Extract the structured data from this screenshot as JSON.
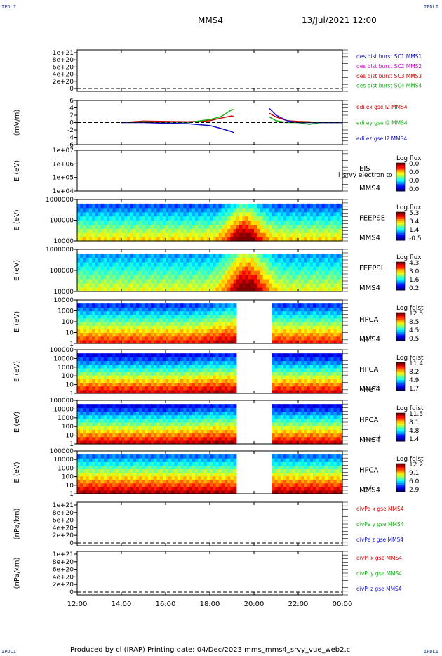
{
  "corner_label": "IPDLI",
  "header": {
    "title": "MMS4",
    "datetime": "13/Jul/2021 12:00"
  },
  "footer": {
    "text": "Produced by cl (IRAP)   Printing date: 04/Dec/2023   mms_mms4_srvy_vue_web2.cl"
  },
  "time_axis": {
    "ticks": [
      "12:00",
      "14:00",
      "16:00",
      "18:00",
      "20:00",
      "22:00",
      "00:00"
    ],
    "start_hour": 12,
    "span_hours": 12
  },
  "chart_data": [
    {
      "type": "line",
      "id": "dist",
      "ylabel": "",
      "yticks": [
        "1e+21",
        "8e+20",
        "6e+20",
        "4e+20",
        "2e+20",
        "0"
      ],
      "legend": [
        {
          "text": "des dist burst SC1 MMS1",
          "color": "#1010c8"
        },
        {
          "text": "des dist burst SC2 MMS2",
          "color": "#d400d4"
        },
        {
          "text": "des dist burst SC3 MMS3",
          "color": "#d40000"
        },
        {
          "text": "des dist burst SC4 MMS4",
          "color": "#10b010"
        }
      ],
      "series": []
    },
    {
      "type": "line",
      "id": "edi",
      "ylabel": "(mV/m)",
      "yticks": [
        "6",
        "4",
        "2",
        "0",
        "-2",
        "-4",
        "-6"
      ],
      "ylim": [
        -6,
        6
      ],
      "legend": [
        {
          "text": "edi ex gse l2 MMS4",
          "color": "#d40000"
        },
        {
          "text": "edi ey gse l2 MMS4",
          "color": "#10b010"
        },
        {
          "text": "edi ez gse l2 MMS4",
          "color": "#1010c8"
        }
      ],
      "data_ranges_hours": [
        [
          14.0,
          19.1
        ],
        [
          20.7,
          24.0
        ]
      ],
      "series": [
        {
          "name": "edi ex gse l2 MMS4",
          "x": [
            14,
            15,
            16,
            17,
            18,
            18.5,
            19,
            19.1,
            20.7,
            21,
            21.5,
            22,
            22.5,
            23,
            24
          ],
          "y": [
            0,
            0.4,
            0.3,
            0.2,
            0.5,
            1.2,
            1.8,
            1.5,
            2.5,
            1.5,
            0.5,
            0.3,
            0.2,
            0,
            0
          ]
        },
        {
          "name": "edi ey gse l2 MMS4",
          "x": [
            14,
            15,
            16,
            17,
            18,
            18.5,
            19,
            19.1,
            20.7,
            21,
            21.5,
            22,
            22.5,
            23,
            24
          ],
          "y": [
            0,
            0.2,
            0.1,
            0,
            0.8,
            1.6,
            3.5,
            3.5,
            1.5,
            0.5,
            0,
            0,
            -0.5,
            0,
            0
          ]
        },
        {
          "name": "edi ez gse l2 MMS4",
          "x": [
            14,
            15,
            16,
            17,
            18,
            18.5,
            19,
            19.1,
            20.7,
            21,
            21.5,
            22,
            22.5,
            23,
            24
          ],
          "y": [
            0,
            0,
            -0.2,
            -0.3,
            -0.8,
            -1.6,
            -2.5,
            -2.8,
            3.8,
            2,
            0.5,
            0,
            0,
            0,
            0
          ]
        }
      ]
    },
    {
      "type": "heatmap",
      "id": "eis",
      "ylabel": "E (eV)",
      "yticks": [
        "1e+07",
        "1e+06",
        "1e+05",
        "1e+04"
      ],
      "labels": [
        "EIS",
        "MMS4"
      ],
      "overlay_text": "l_srvy electron to",
      "colorbar_title": "Log flux",
      "colorbar_ticks": [
        "0.0",
        "0.0",
        "0.0",
        "0.0"
      ],
      "fill": "none"
    },
    {
      "type": "heatmap",
      "id": "feepse",
      "ylabel": "E (eV)",
      "yticks": [
        "1000000",
        "100000",
        "10000"
      ],
      "labels": [
        "FEEPSE",
        "MMS4"
      ],
      "colorbar_title": "Log flux",
      "colorbar_ticks": [
        "5.3",
        "3.4",
        "1.4",
        "-0.5"
      ],
      "fill": "feep_e",
      "data_ranges_hours": [
        [
          12.0,
          24.0
        ]
      ]
    },
    {
      "type": "heatmap",
      "id": "feepsi",
      "ylabel": "E (eV)",
      "yticks": [
        "1000000",
        "100000",
        "10000"
      ],
      "labels": [
        "FEEPSI",
        "MMS4"
      ],
      "colorbar_title": "Log flux",
      "colorbar_ticks": [
        "4.3",
        "3.0",
        "1.6",
        "0.2"
      ],
      "fill": "feep_i",
      "data_ranges_hours": [
        [
          12.0,
          24.0
        ]
      ]
    },
    {
      "type": "heatmap",
      "id": "hpca_h",
      "ylabel": "E (eV)",
      "yticks": [
        "10000",
        "1000",
        "100",
        "10",
        "1"
      ],
      "labels": [
        "HPCA",
        "MMS4"
      ],
      "species": "H",
      "species_sup": "+",
      "colorbar_title": "Log fdist",
      "colorbar_ticks": [
        "12.5",
        "8.5",
        "4.5",
        "0.5"
      ],
      "fill": "hpca_h",
      "data_ranges_hours": [
        [
          12.0,
          19.1
        ],
        [
          20.7,
          24.0
        ]
      ]
    },
    {
      "type": "heatmap",
      "id": "hpca_he",
      "ylabel": "E (eV)",
      "yticks": [
        "100000",
        "10000",
        "1000",
        "100",
        "10",
        "1"
      ],
      "labels": [
        "HPCA",
        "MMS4"
      ],
      "species": "He",
      "species_sup": "+",
      "colorbar_title": "Log fdist",
      "colorbar_ticks": [
        "11.4",
        "8.2",
        "4.9",
        "1.7"
      ],
      "fill": "hpca_he",
      "data_ranges_hours": [
        [
          12.0,
          19.1
        ],
        [
          20.7,
          24.0
        ]
      ]
    },
    {
      "type": "heatmap",
      "id": "hpca_he2",
      "ylabel": "E (eV)",
      "yticks": [
        "100000",
        "10000",
        "1000",
        "100",
        "10",
        "1"
      ],
      "labels": [
        "HPCA",
        "MMS4"
      ],
      "species": "He",
      "species_sup": "++",
      "colorbar_title": "Log fdist",
      "colorbar_ticks": [
        "11.5",
        "8.1",
        "4.8",
        "1.4"
      ],
      "fill": "hpca_he",
      "data_ranges_hours": [
        [
          12.0,
          19.1
        ],
        [
          20.7,
          24.0
        ]
      ]
    },
    {
      "type": "heatmap",
      "id": "hpca_o",
      "ylabel": "E (eV)",
      "yticks": [
        "100000",
        "10000",
        "1000",
        "100",
        "10",
        "1"
      ],
      "labels": [
        "HPCA",
        "MMS4"
      ],
      "species": "O",
      "species_sup": "+",
      "colorbar_title": "Log fdist",
      "colorbar_ticks": [
        "12.2",
        "9.1",
        "6.0",
        "2.9"
      ],
      "fill": "hpca_o",
      "data_ranges_hours": [
        [
          12.0,
          19.1
        ],
        [
          20.7,
          24.0
        ]
      ]
    },
    {
      "type": "line",
      "id": "divpe",
      "ylabel": "(nPa/km)",
      "yticks": [
        "1e+21",
        "8e+20",
        "6e+20",
        "4e+20",
        "2e+20",
        "0"
      ],
      "legend": [
        {
          "text": "divPe x gse MMS4",
          "color": "#d40000"
        },
        {
          "text": "divPe y gse MMS4",
          "color": "#10b010"
        },
        {
          "text": "divPe z gse MMS4",
          "color": "#1010c8"
        }
      ],
      "series": []
    },
    {
      "type": "line",
      "id": "divpi",
      "ylabel": "(nPa/km)",
      "yticks": [
        "1e+21",
        "8e+20",
        "6e+20",
        "4e+20",
        "2e+20",
        "0"
      ],
      "legend": [
        {
          "text": "divPi x gse MMS4",
          "color": "#d40000"
        },
        {
          "text": "divPi y gse MMS4",
          "color": "#10b010"
        },
        {
          "text": "divPi z gse MMS4",
          "color": "#1010c8"
        }
      ],
      "series": []
    }
  ]
}
